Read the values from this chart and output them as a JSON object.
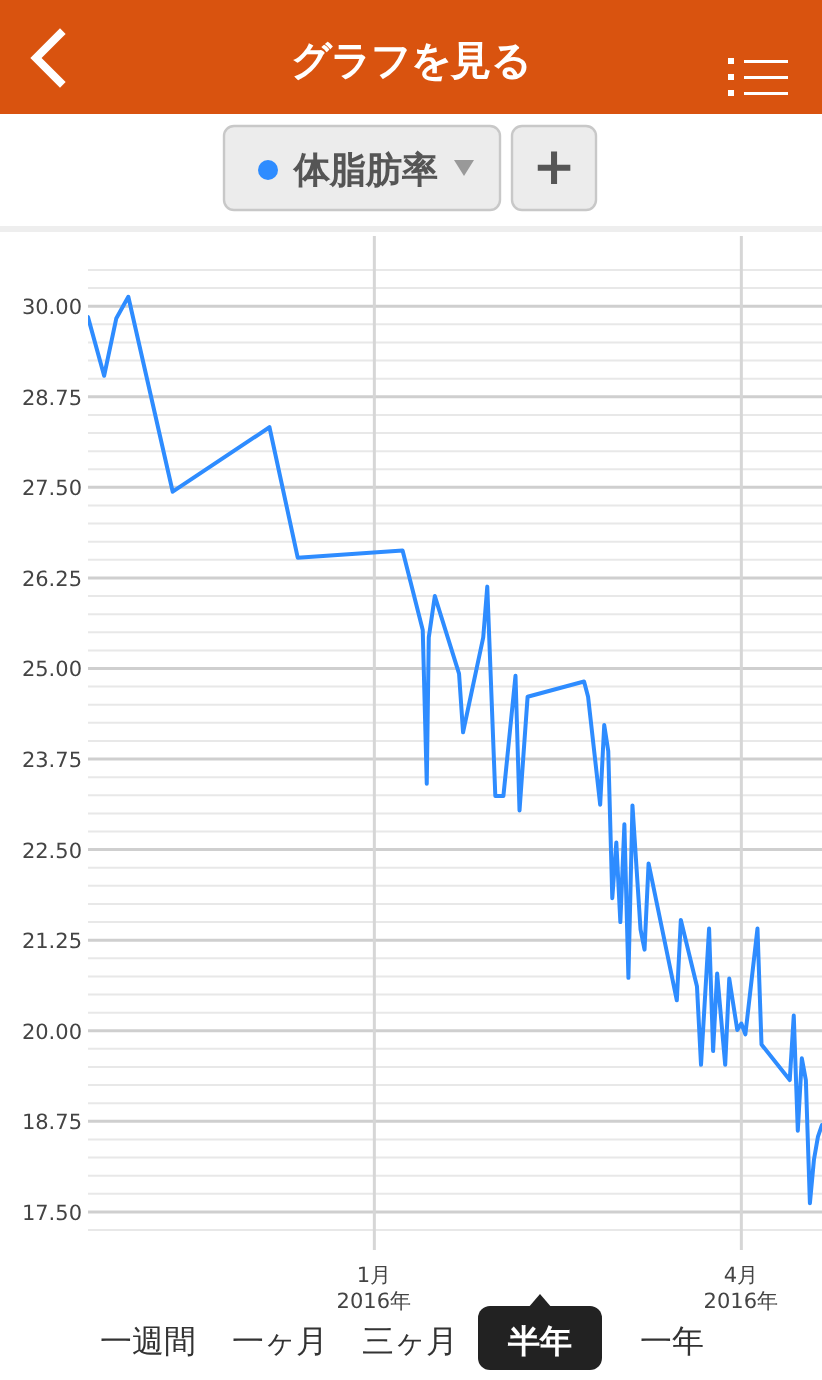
{
  "chart_data": {
    "type": "line",
    "title": "グラフを見る",
    "legend": "top",
    "grid": true,
    "annotations": [
      "+",
      "一週間",
      "一ヶ月",
      "三ヶ月",
      "半年",
      "一年"
    ],
    "xlim": [
      "2015-10-22",
      "2016-04-21"
    ],
    "xticks": [
      {
        "value": "2016-01-01",
        "label": "1月\n2016年"
      },
      {
        "value": "2016-04-01",
        "label": "4月\n2016年"
      }
    ],
    "ylim": [
      17.25,
      30.5
    ],
    "yticks": [
      {
        "value": 17.25,
        "label": null
      },
      {
        "value": 17.5,
        "label": "17.50"
      },
      {
        "value": 17.75,
        "label": null
      },
      {
        "value": 18,
        "label": null
      },
      {
        "value": 18.25,
        "label": null
      },
      {
        "value": 18.5,
        "label": null
      },
      {
        "value": 18.75,
        "label": "18.75"
      },
      {
        "value": 19,
        "label": null
      },
      {
        "value": 19.25,
        "label": null
      },
      {
        "value": 19.5,
        "label": null
      },
      {
        "value": 19.75,
        "label": null
      },
      {
        "value": 20,
        "label": "20.00"
      },
      {
        "value": 20.25,
        "label": null
      },
      {
        "value": 20.5,
        "label": null
      },
      {
        "value": 20.75,
        "label": null
      },
      {
        "value": 21,
        "label": null
      },
      {
        "value": 21.25,
        "label": "21.25"
      },
      {
        "value": 21.5,
        "label": null
      },
      {
        "value": 21.75,
        "label": null
      },
      {
        "value": 22,
        "label": null
      },
      {
        "value": 22.25,
        "label": null
      },
      {
        "value": 22.5,
        "label": "22.50"
      },
      {
        "value": 22.75,
        "label": null
      },
      {
        "value": 23,
        "label": null
      },
      {
        "value": 23.25,
        "label": null
      },
      {
        "value": 23.5,
        "label": null
      },
      {
        "value": 23.75,
        "label": "23.75"
      },
      {
        "value": 24,
        "label": null
      },
      {
        "value": 24.25,
        "label": null
      },
      {
        "value": 24.5,
        "label": null
      },
      {
        "value": 24.75,
        "label": null
      },
      {
        "value": 25,
        "label": "25.00"
      },
      {
        "value": 25.25,
        "label": null
      },
      {
        "value": 25.5,
        "label": null
      },
      {
        "value": 25.75,
        "label": null
      },
      {
        "value": 26,
        "label": null
      },
      {
        "value": 26.25,
        "label": "26.25"
      },
      {
        "value": 26.5,
        "label": null
      },
      {
        "value": 26.75,
        "label": null
      },
      {
        "value": 27,
        "label": null
      },
      {
        "value": 27.25,
        "label": null
      },
      {
        "value": 27.5,
        "label": "27.50"
      },
      {
        "value": 27.75,
        "label": null
      },
      {
        "value": 28,
        "label": null
      },
      {
        "value": 28.25,
        "label": null
      },
      {
        "value": 28.5,
        "label": null
      },
      {
        "value": 28.75,
        "label": "28.75"
      },
      {
        "value": 29,
        "label": null
      },
      {
        "value": 29.25,
        "label": null
      },
      {
        "value": 29.5,
        "label": null
      },
      {
        "value": 29.75,
        "label": null
      },
      {
        "value": 30,
        "label": "30.00"
      },
      {
        "value": 30.25,
        "label": null
      },
      {
        "value": 30.5,
        "label": null
      }
    ],
    "series": [
      {
        "name": "体脂肪率",
        "color": "#2e8cff",
        "x": [
          "2015-10-22",
          "2015-10-26",
          "2015-10-29",
          "2015-11-01",
          "2015-11-12",
          "2015-12-06",
          "2015-12-13",
          "2016-01-08",
          "2016-01-13",
          "2016-01-14",
          "2016-01-14T12:00",
          "2016-01-16",
          "2016-01-22",
          "2016-01-23",
          "2016-01-28",
          "2016-01-29",
          "2016-01-31",
          "2016-02-02",
          "2016-02-05",
          "2016-02-06",
          "2016-02-08",
          "2016-02-22",
          "2016-02-23",
          "2016-02-26",
          "2016-02-27",
          "2016-02-28",
          "2016-02-29",
          "2016-03-01",
          "2016-03-02",
          "2016-03-03",
          "2016-03-04",
          "2016-03-05",
          "2016-03-07",
          "2016-03-08",
          "2016-03-09",
          "2016-03-16",
          "2016-03-17",
          "2016-03-21",
          "2016-03-22",
          "2016-03-24",
          "2016-03-25",
          "2016-03-26",
          "2016-03-28",
          "2016-03-29",
          "2016-03-31",
          "2016-04-01",
          "2016-04-02",
          "2016-04-05",
          "2016-04-06",
          "2016-04-13",
          "2016-04-14",
          "2016-04-15",
          "2016-04-16",
          "2016-04-17",
          "2016-04-18",
          "2016-04-19",
          "2016-04-20",
          "2016-04-21"
        ],
        "values": [
          29.85,
          29.04,
          29.83,
          30.13,
          27.44,
          28.33,
          26.53,
          26.63,
          25.53,
          23.41,
          25.43,
          26.0,
          24.93,
          24.12,
          25.43,
          26.13,
          23.24,
          23.24,
          24.9,
          23.04,
          24.61,
          24.82,
          24.61,
          23.12,
          24.22,
          23.86,
          21.83,
          22.6,
          21.5,
          22.85,
          20.73,
          23.11,
          21.4,
          21.12,
          22.31,
          20.42,
          21.53,
          20.61,
          19.53,
          21.41,
          19.72,
          20.79,
          19.53,
          20.72,
          20.01,
          20.1,
          19.95,
          21.41,
          19.81,
          19.32,
          20.21,
          18.62,
          19.62,
          19.32,
          17.62,
          18.22,
          18.54,
          18.7
        ]
      }
    ]
  }
}
